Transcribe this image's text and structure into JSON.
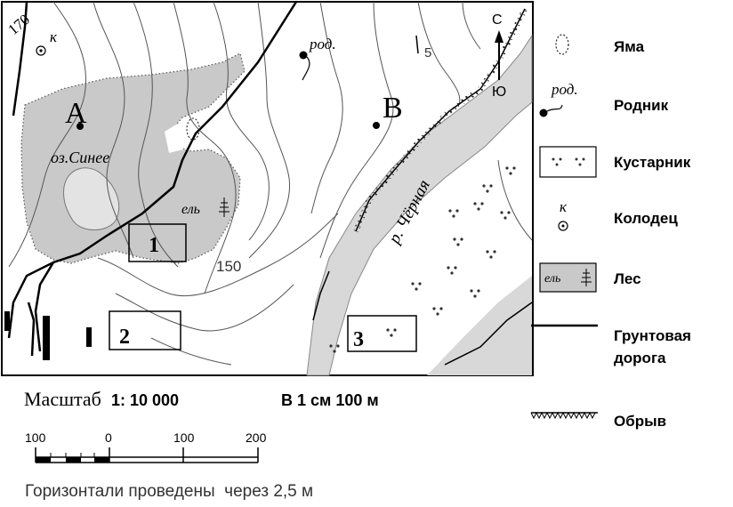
{
  "map": {
    "points": {
      "a": "А",
      "b": "В"
    },
    "lake_label": "оз.Синее",
    "spring_label_1": "род.",
    "forest_label": "ель",
    "river_label": "р. Чёрная",
    "well_label": "к",
    "contours": {
      "c170": "170",
      "c150": "150",
      "c5": "5"
    },
    "areas": {
      "one": "1",
      "two": "2",
      "three": "3"
    },
    "compass": {
      "north": "С",
      "south": "Ю"
    }
  },
  "legend": {
    "pit": "Яма",
    "spring_sign": "род.",
    "spring": "Родник",
    "shrub": "Кустарник",
    "well_sign": "к",
    "well": "Колодец",
    "forest_sign": "ель",
    "forest": "Лес",
    "road_line1": "Грунтовая",
    "road_line2": "дорога",
    "cliff": "Обрыв"
  },
  "scale": {
    "label": "Масштаб",
    "ratio": "1: 10 000",
    "verbal": "В 1 см 100 м",
    "ticks": [
      "100",
      "0",
      "100",
      "200"
    ]
  },
  "contour_note": "Горизонтали проведены  через 2,5 м"
}
